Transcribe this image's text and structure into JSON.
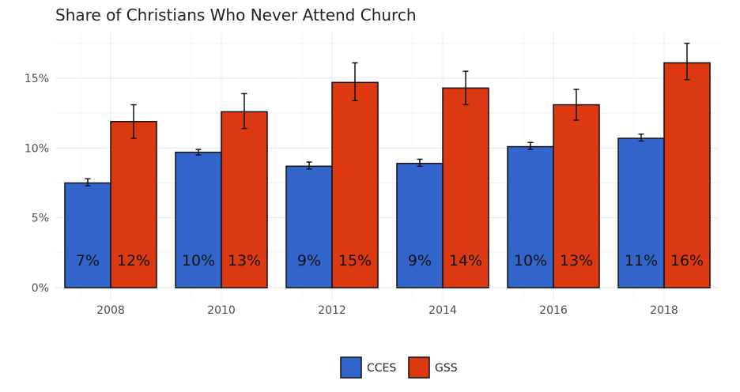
{
  "chart_data": {
    "type": "bar",
    "title": "Share of Christians Who Never Attend Church",
    "xlabel": "",
    "ylabel": "",
    "categories": [
      "2008",
      "2010",
      "2012",
      "2014",
      "2016",
      "2018"
    ],
    "ylim": [
      0,
      0.18
    ],
    "yticks": [
      0,
      0.05,
      0.1,
      0.15
    ],
    "ytick_labels": [
      "0%",
      "5%",
      "10%",
      "15%"
    ],
    "grid": true,
    "legend_position": "bottom",
    "error_bars": true,
    "series": [
      {
        "name": "CCES",
        "color": "#3366cc",
        "values": [
          0.075,
          0.097,
          0.087,
          0.089,
          0.101,
          0.107
        ],
        "err_low": [
          0.073,
          0.095,
          0.085,
          0.087,
          0.099,
          0.105
        ],
        "err_high": [
          0.078,
          0.099,
          0.09,
          0.092,
          0.104,
          0.11
        ],
        "labels": [
          "7%",
          "10%",
          "9%",
          "9%",
          "10%",
          "11%"
        ]
      },
      {
        "name": "GSS",
        "color": "#dc3912",
        "values": [
          0.119,
          0.126,
          0.147,
          0.143,
          0.131,
          0.161
        ],
        "err_low": [
          0.107,
          0.114,
          0.134,
          0.131,
          0.12,
          0.149
        ],
        "err_high": [
          0.131,
          0.139,
          0.161,
          0.155,
          0.142,
          0.175
        ],
        "labels": [
          "12%",
          "13%",
          "15%",
          "14%",
          "13%",
          "16%"
        ]
      }
    ]
  }
}
